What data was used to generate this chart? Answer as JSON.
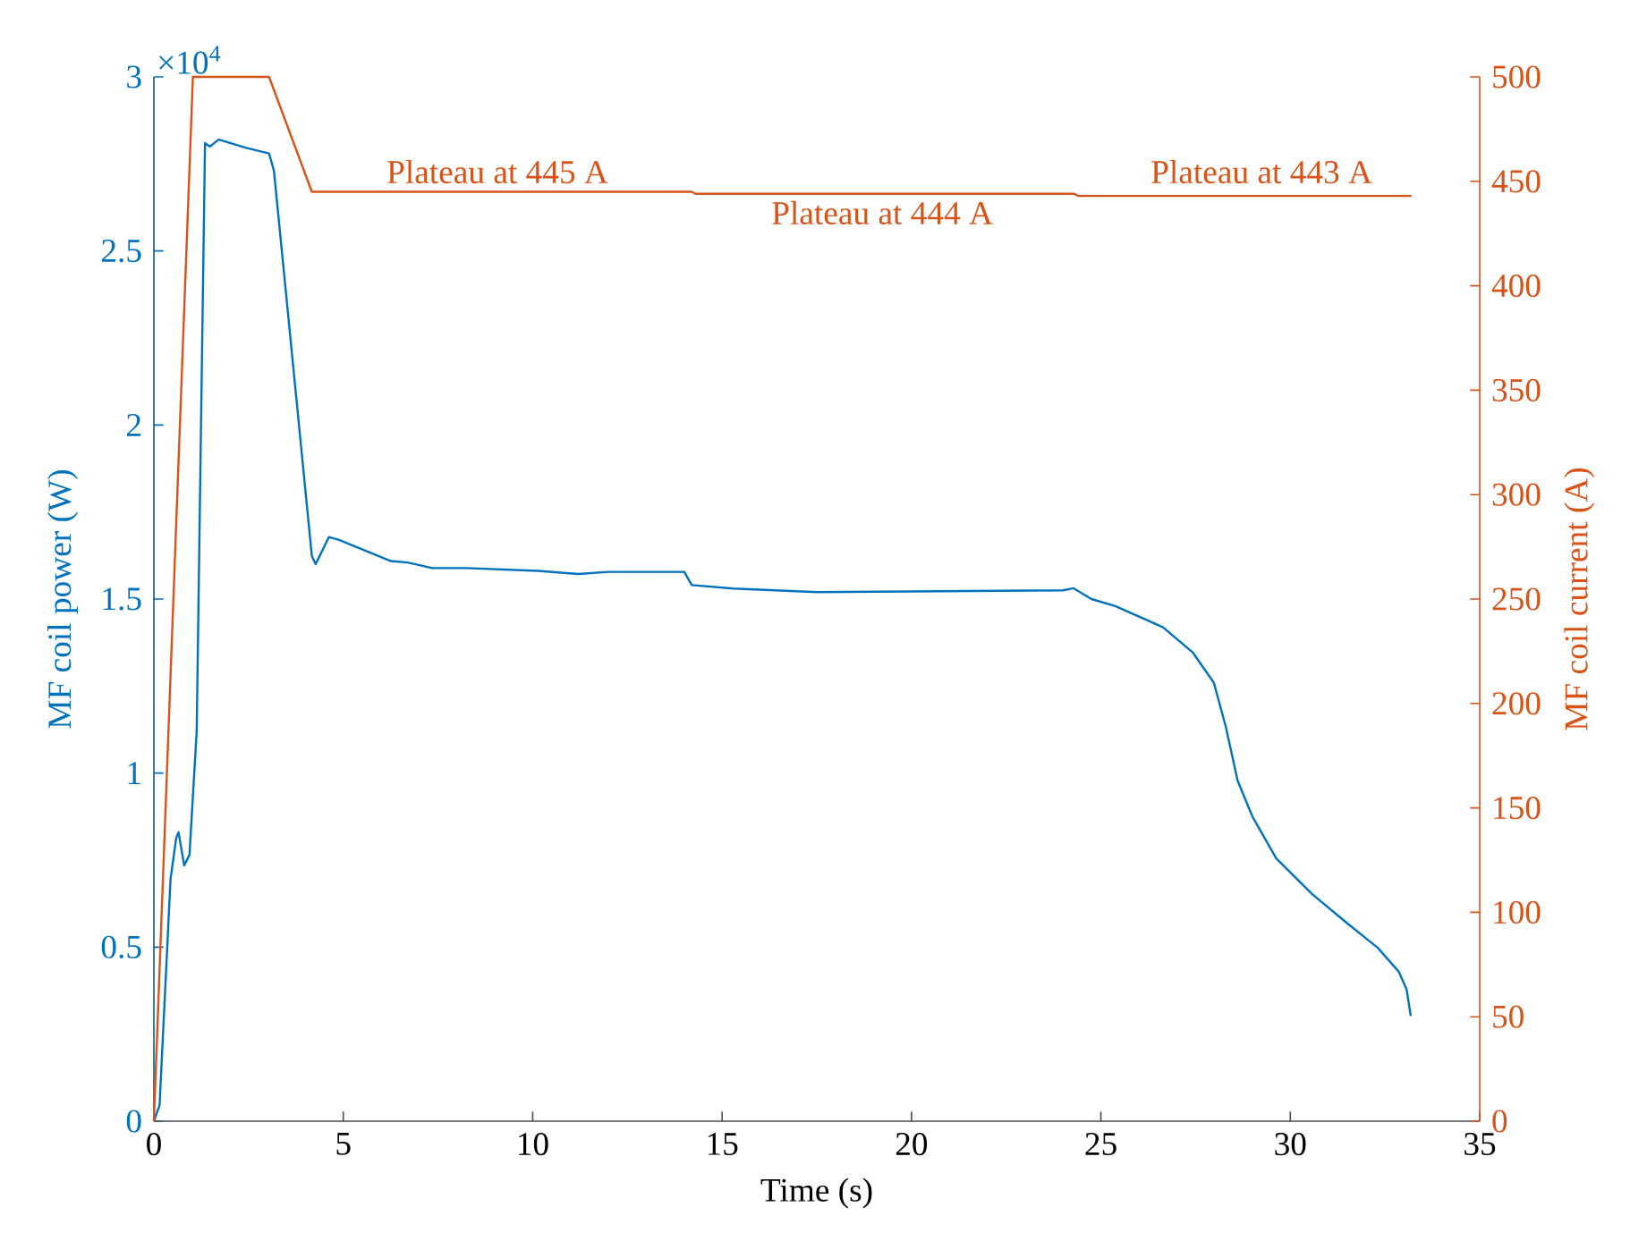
{
  "chart_data": {
    "type": "line",
    "xlabel": "Time (s)",
    "ylabel": "MF coil power (W)",
    "y2label": "MF coil current (A)",
    "xlim": [
      0,
      35
    ],
    "xticks": [
      0,
      5,
      10,
      15,
      20,
      25,
      30,
      35
    ],
    "ylim": [
      0,
      3
    ],
    "yticks": [
      0,
      0.5,
      1,
      1.5,
      2,
      2.5,
      3
    ],
    "y2lim": [
      0,
      500
    ],
    "y2ticks": [
      0,
      50,
      100,
      150,
      200,
      250,
      300,
      350,
      400,
      450,
      500
    ],
    "annotations": [
      "×10$^{4}$",
      "Plateau at 445 A",
      "Plateau at 444 A",
      "Plateau at 443 A"
    ],
    "series": [
      {
        "color": "#0072bd",
        "x": [
          0,
          0.15,
          0.44,
          0.59,
          0.65,
          0.8,
          0.94,
          1.13,
          1.35,
          1.48,
          1.71,
          2.44,
          3.04,
          3.17,
          4.17,
          4.27,
          4.62,
          4.89,
          6.26,
          6.7,
          7.35,
          8.26,
          10.15,
          11.2,
          12,
          14,
          14.2,
          15.3,
          17.5,
          24,
          24.28,
          24.75,
          25.38,
          26.64,
          27.43,
          27.98,
          28.3,
          28.61,
          29,
          29.63,
          30.58,
          31.52,
          32.31,
          32.86,
          33.07,
          33.18
        ],
        "values": [
          0,
          0.046,
          0.696,
          0.814,
          0.83,
          0.735,
          0.765,
          1.12,
          2.81,
          2.8,
          2.82,
          2.796,
          2.78,
          2.73,
          1.624,
          1.6,
          1.678,
          1.67,
          1.609,
          1.605,
          1.589,
          1.589,
          1.581,
          1.572,
          1.578,
          1.578,
          1.54,
          1.53,
          1.52,
          1.525,
          1.531,
          1.5,
          1.48,
          1.419,
          1.346,
          1.26,
          1.132,
          0.978,
          0.875,
          0.755,
          0.652,
          0.567,
          0.498,
          0.43,
          0.379,
          0.302
        ]
      },
      {
        "color": "#d95319",
        "axis": "y2",
        "x": [
          0,
          1.03,
          3.04,
          4.17,
          14.2,
          14.3,
          24.3,
          24.4,
          33.2
        ],
        "values": [
          0,
          500,
          500,
          445,
          445,
          444,
          444,
          443,
          443
        ]
      }
    ]
  }
}
